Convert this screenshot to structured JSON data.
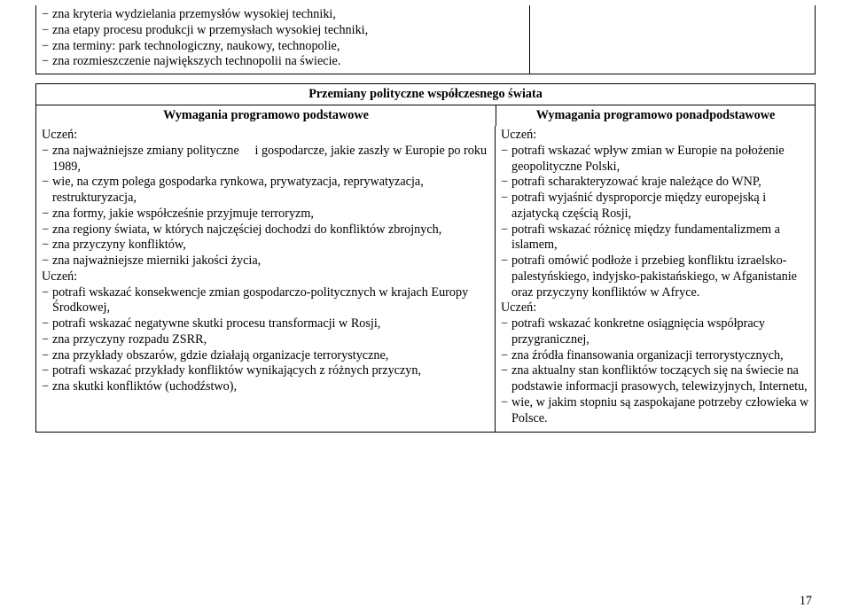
{
  "topBox": {
    "items": [
      "zna kryteria wydzielania przemysłów wysokiej techniki,",
      "zna etapy procesu produkcji w przemysłach wysokiej techniki,",
      "zna terminy: park technologiczny, naukowy, technopolie,",
      "zna rozmieszczenie największych technopolii na świecie."
    ]
  },
  "mainBox": {
    "title": "Przemiany polityczne współczesnego świata",
    "leftHead": "Wymagania programowo podstawowe",
    "rightHead": "Wymagania programowo ponadpodstawowe",
    "uczen": "Uczeń:",
    "left1": [
      "zna najważniejsze zmiany polityczne  i gospodarcze, jakie zaszły w Europie po roku 1989,",
      "wie, na czym polega gospodarka rynkowa, prywatyzacja, reprywatyzacja, restrukturyzacja,",
      "zna formy, jakie współcześnie przyjmuje terroryzm,",
      "zna regiony świata, w których najczęściej dochodzi do konfliktów zbrojnych,",
      "zna przyczyny konfliktów,",
      "zna najważniejsze mierniki jakości życia,"
    ],
    "left2": [
      "potrafi wskazać konsekwencje zmian gospodarczo-politycznych w krajach Europy Środkowej,",
      "potrafi wskazać negatywne skutki procesu transformacji w Rosji,",
      "zna przyczyny rozpadu ZSRR,",
      "zna przykłady obszarów, gdzie działają organizacje terrorystyczne,",
      "potrafi wskazać przykłady konfliktów wynikających z różnych przyczyn,",
      "zna skutki konfliktów (uchodźstwo),"
    ],
    "right1": [
      "potrafi wskazać wpływ zmian w Europie na położenie geopolityczne Polski,",
      "potrafi scharakteryzować kraje należące do WNP,",
      "potrafi wyjaśnić dysproporcje między europejską i azjatycką częścią Rosji,",
      "potrafi wskazać różnicę między fundamentalizmem a islamem,",
      "potrafi omówić podłoże i przebieg konfliktu izraelsko-palestyńskiego, indyjsko-pakistańskiego, w Afganistanie oraz przyczyny konfliktów w Afryce."
    ],
    "right2": [
      "potrafi wskazać konkretne osiągnięcia współpracy przygranicznej,",
      "zna źródła finansowania organizacji terrorystycznych,",
      "zna aktualny stan konfliktów toczących się na świecie na podstawie informacji prasowych, telewizyjnych, Internetu,",
      "wie, w jakim stopniu są zaspokajane potrzeby człowieka w Polsce."
    ]
  },
  "pageNumber": "17"
}
